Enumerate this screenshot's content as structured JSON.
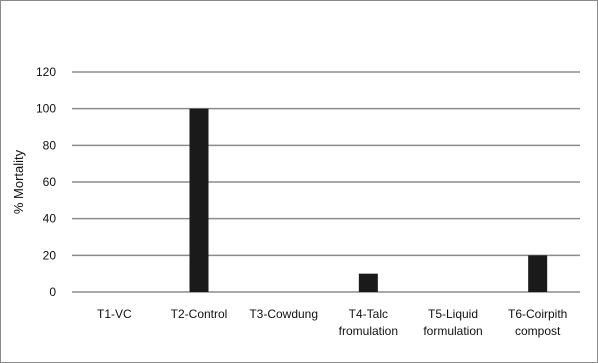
{
  "chart_data": {
    "type": "bar",
    "categories": [
      [
        "T1-VC"
      ],
      [
        "T2-Control"
      ],
      [
        "T3-Cowdung"
      ],
      [
        "T4-Talc",
        "fromulation"
      ],
      [
        "T5-Liquid",
        "formulation"
      ],
      [
        "T6-Coirpith",
        "compost"
      ]
    ],
    "values": [
      0,
      100,
      0,
      10,
      0,
      20
    ],
    "ylabel": "% Mortality",
    "xlabel": "",
    "ylim": [
      0,
      120
    ],
    "yticks": [
      0,
      20,
      40,
      60,
      80,
      100,
      120
    ],
    "grid": true,
    "bar_color": "#1a1a1a",
    "grid_color": "#8c8c8c"
  }
}
